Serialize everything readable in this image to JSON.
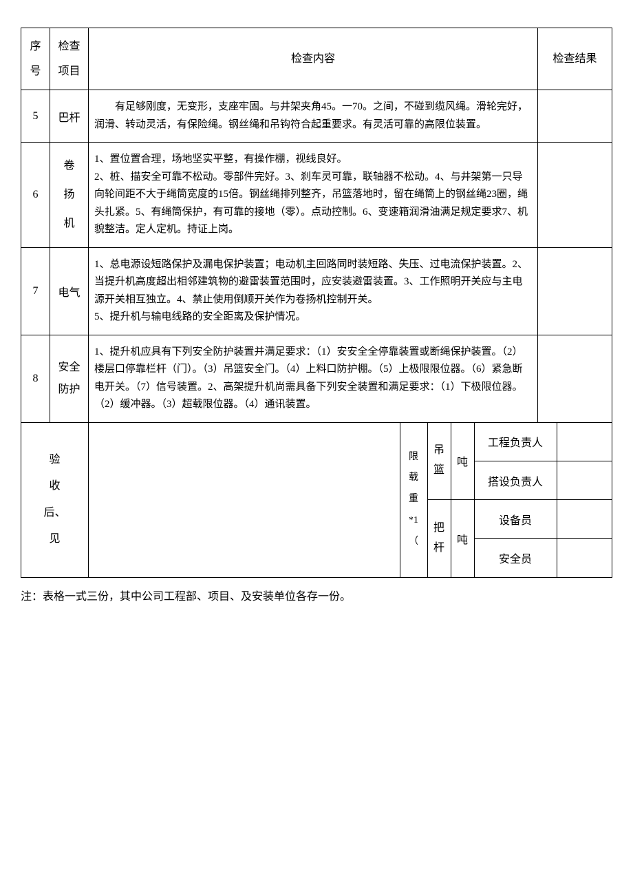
{
  "headers": {
    "seq": "序\n号",
    "item": "检查\n项目",
    "content": "检查内容",
    "result": "检查结果"
  },
  "rows": [
    {
      "seq": "5",
      "item": "巴杆",
      "content": "　　有足够刚度，无变形，支座牢固。与井架夹角45。一70。之间，不碰到缆风绳。滑轮完好，润滑、转动灵活，有保险绳。钢丝绳和吊钩符合起重要求。有灵活可靠的高限位装置。"
    },
    {
      "seq": "6",
      "item": "卷\n扬\n机",
      "content": "1、置位置合理，场地坚实平整，有操作棚，视线良好。\n2、桩、描安全可靠不松动。零部件完好。3、刹车灵可靠，联轴器不松动。4、与井架第一只导向轮间距不大于绳筒宽度的15倍。钢丝绳排列整齐，吊篮落地时，留在绳筒上的钢丝绳23圈，绳头扎紧。5、有绳筒保护，有可靠的接地（零）。点动控制。6、变速箱润滑油满足规定要求7、机貌整洁。定人定机。持证上岗。"
    },
    {
      "seq": "7",
      "item": "电气",
      "content": "1、总电源设短路保护及漏电保护装置；电动机主回路同时装短路、失压、过电流保护装置。2、当提升机高度超出相邻建筑物的避雷装置范围时，应安装避雷装置。3、工作照明开关应与主电源开关相互独立。4、禁止使用倒顺开关作为卷扬机控制开关。\n5、提升机与输电线路的安全距离及保护情况。",
      "line5_center": true
    },
    {
      "seq": "8",
      "item": "安全\n防护",
      "content": "1、提升机应具有下列安全防护装置并满足要求：（1）安安全全停靠装置或断绳保护装置。（2）楼层口停靠栏杆（门）。（3）吊篮安全门。（4）上料口防护棚。（5）上极限限位器。（6）紧急断电开关。（7）信号装置。2、高架提升机尚需具备下列安全装置和满足要求：（1）下极限位器。（2）缓冲器。（3）超载限位器。（4）通讯装置。"
    }
  ],
  "footer": {
    "opinion_label": "验\n收\n后、\n见",
    "xz_label": "限\n载\n重\n*1（",
    "diaolan": "吊\n篮",
    "bagan": "把\n杆",
    "unit": "吨",
    "sig1": "工程负责人",
    "sig2": "搭设负责人",
    "sig3": "设备员",
    "sig4": "安全员"
  },
  "note": "注：表格一式三份，其中公司工程部、项目、及安装单位各存一份。"
}
